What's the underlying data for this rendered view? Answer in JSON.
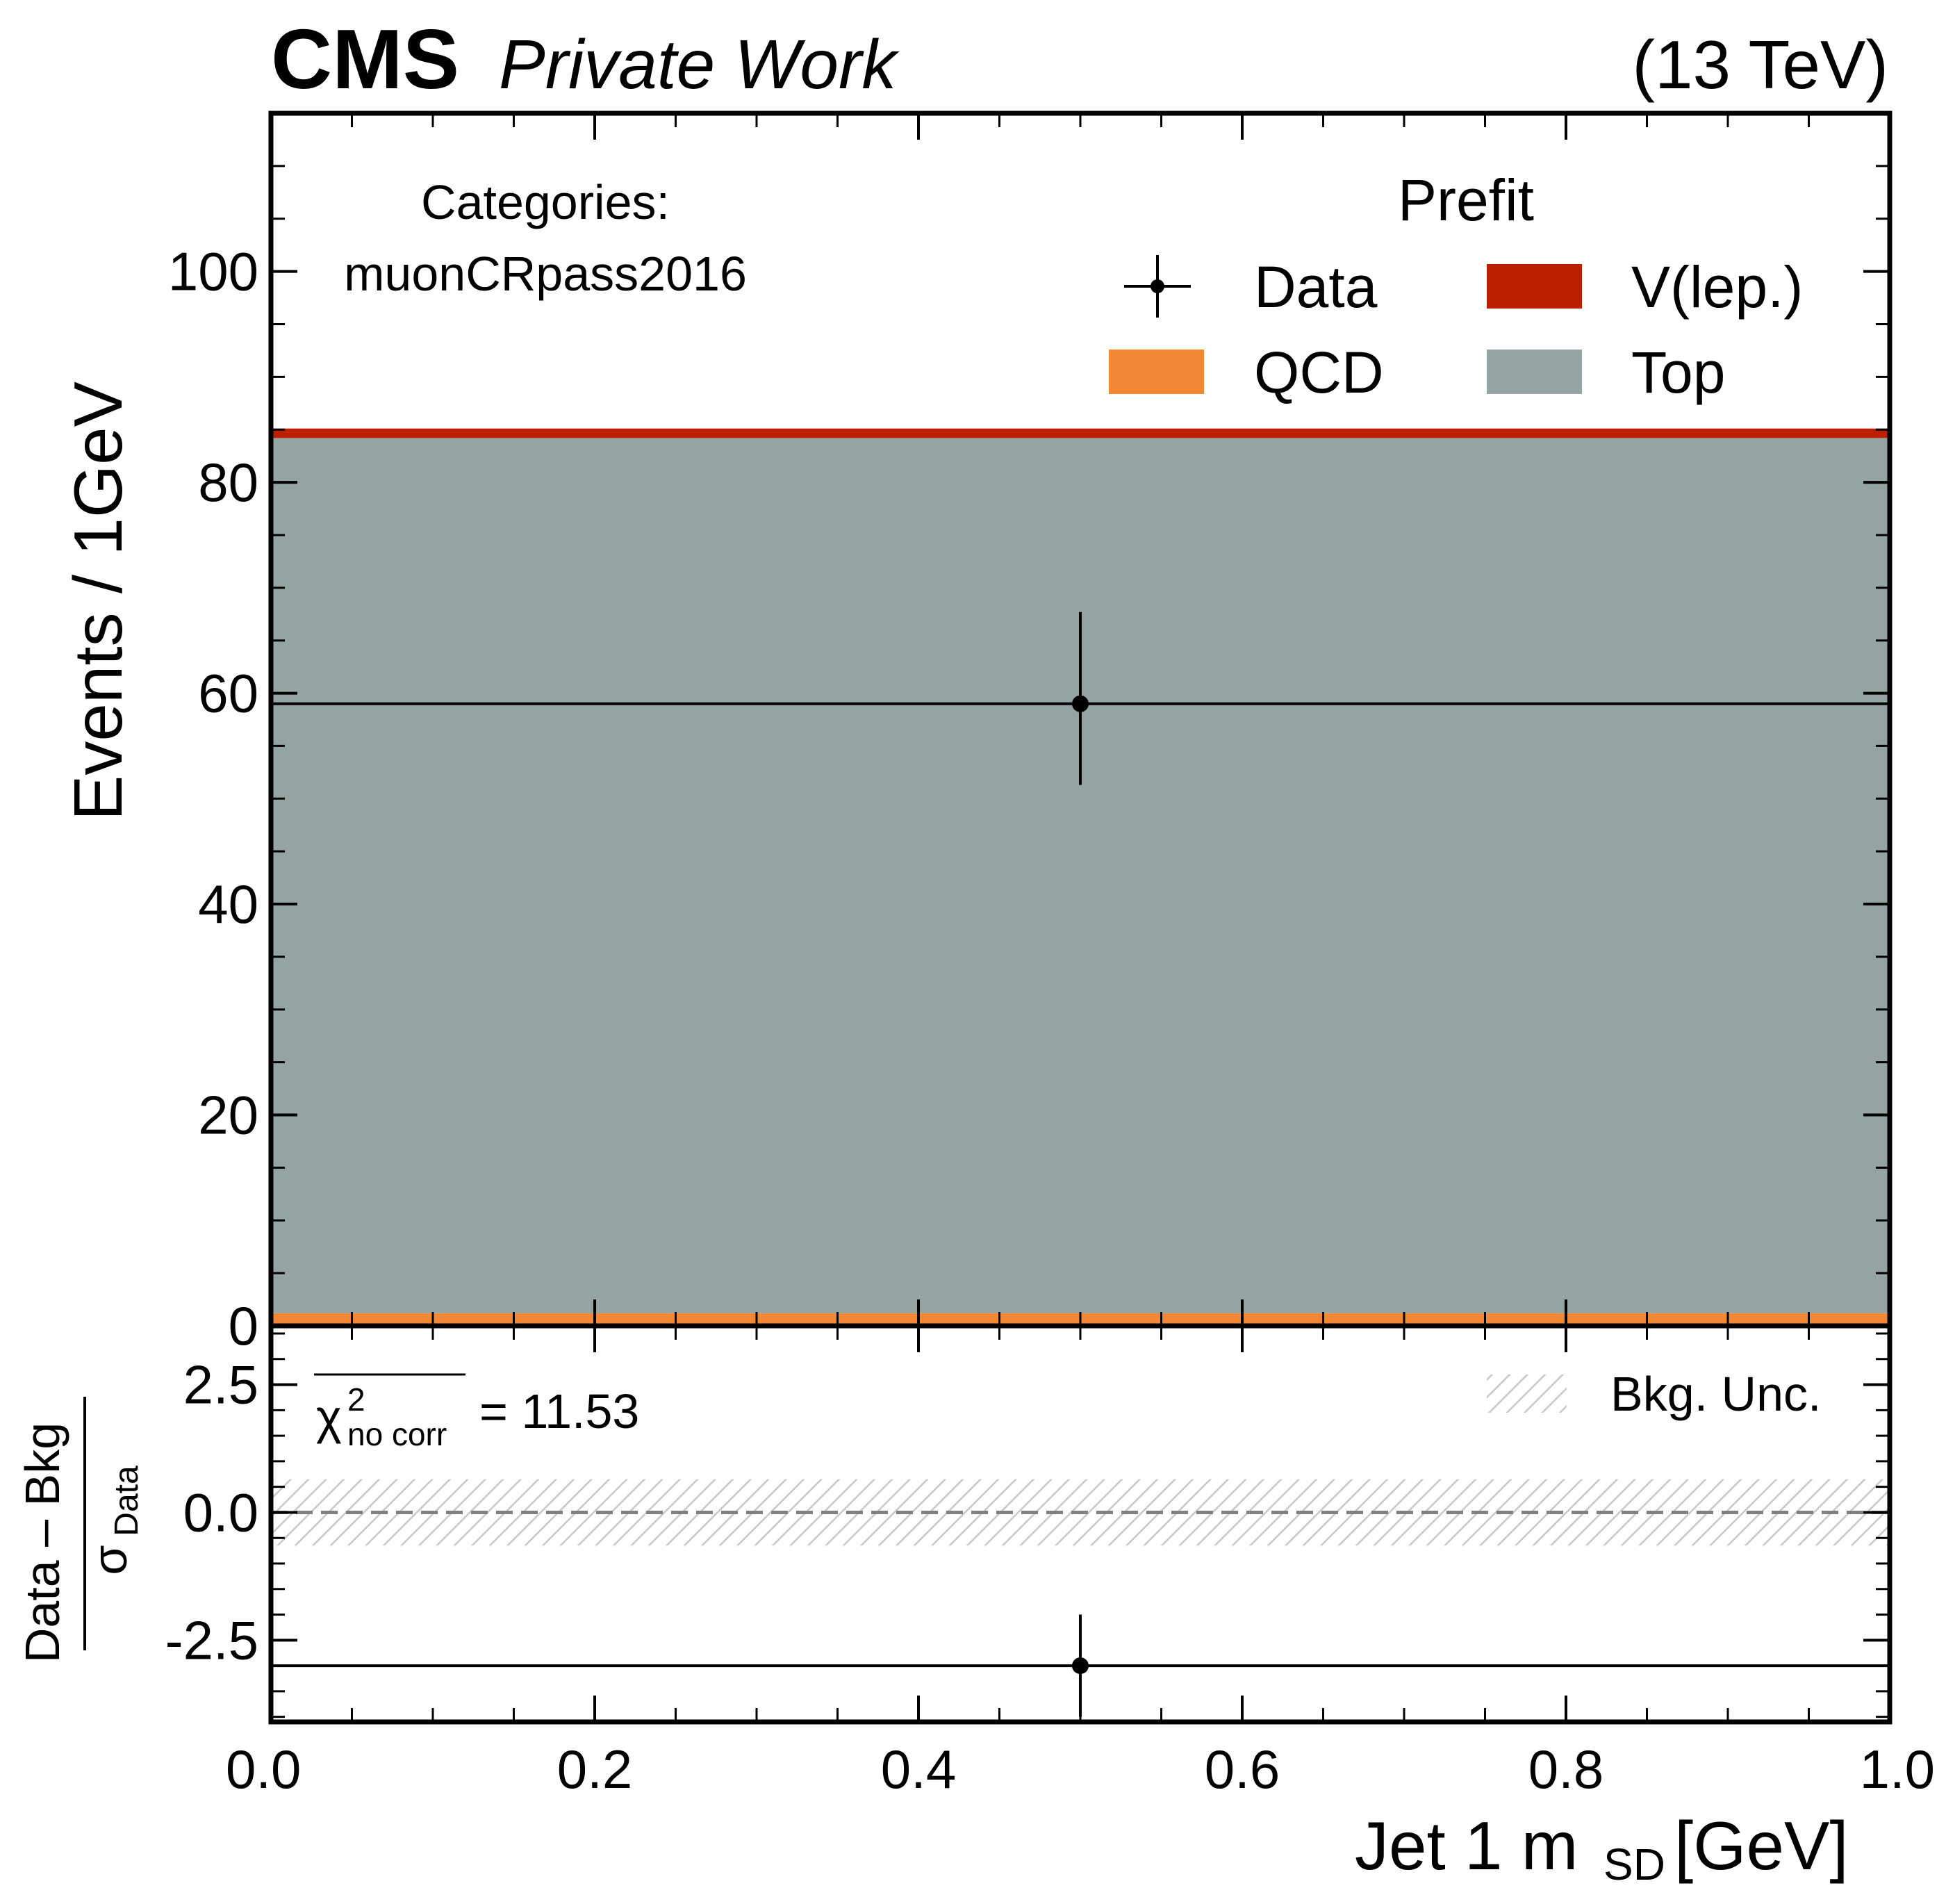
{
  "header": {
    "experiment": "CMS",
    "label": "Private Work",
    "energy": "(13 TeV)"
  },
  "annotations": {
    "categories_title": "Categories:",
    "categories_value": "muonCRpass2016",
    "chi2_symbol": "χ",
    "chi2_sup": "2",
    "chi2_sub": "no corr",
    "chi2_value": "= 11.53"
  },
  "legend": {
    "title": "Prefit",
    "entries": [
      {
        "label": "Data",
        "kind": "errorbar",
        "color": "#000000"
      },
      {
        "label": "V(lep.)",
        "kind": "patch",
        "color": "#bd1f01"
      },
      {
        "label": "QCD",
        "kind": "patch",
        "color": "#f28833"
      },
      {
        "label": "Top",
        "kind": "patch",
        "color": "#94a4a2"
      }
    ],
    "placement": "upper-right"
  },
  "ratio_legend": {
    "label": "Bkg. Unc.",
    "placement": "upper-right"
  },
  "chart_data": [
    {
      "type": "bar",
      "panel": "main",
      "stacked": true,
      "bins": [
        [
          0.0,
          1.0
        ]
      ],
      "series": [
        {
          "name": "QCD",
          "values": [
            1.2
          ],
          "color": "#f28833"
        },
        {
          "name": "Top",
          "values": [
            83.0
          ],
          "color": "#94a4a2"
        },
        {
          "name": "V(lep.)",
          "values": [
            0.9
          ],
          "color": "#bd1f01"
        }
      ],
      "data_points": {
        "name": "Data",
        "x": [
          0.5
        ],
        "y": [
          59.0
        ],
        "xerr": [
          0.5
        ],
        "yerr_low": [
          7.7
        ],
        "yerr_high": [
          8.7
        ]
      },
      "ylabel": "Events / 1GeV",
      "ylim": [
        0,
        115
      ],
      "yticks": [
        0,
        20,
        40,
        60,
        80,
        100
      ],
      "xlim": [
        0.0,
        1.0
      ]
    },
    {
      "type": "scatter",
      "panel": "ratio",
      "ylabel_num": "Data – Bkg",
      "ylabel_den": "σ",
      "ylabel_den_sub": "Data",
      "data_points": {
        "x": [
          0.5
        ],
        "y": [
          -3.0
        ],
        "xerr": [
          0.5
        ],
        "yerr": [
          1.0
        ]
      },
      "reference_line": 0.0,
      "uncertainty_band": [
        -0.65,
        0.65
      ],
      "ylim": [
        -4.1,
        3.65
      ],
      "yticks": [
        -2.5,
        0.0,
        2.5
      ],
      "ytick_labels": [
        "-2.5",
        "0.0",
        "2.5"
      ],
      "xlim": [
        0.0,
        1.0
      ],
      "xticks": [
        0.0,
        0.2,
        0.4,
        0.6,
        0.8,
        1.0
      ],
      "xtick_labels": [
        "0.0",
        "0.2",
        "0.4",
        "0.6",
        "0.8",
        "1.0"
      ],
      "xlabel_main": "Jet 1 m",
      "xlabel_sub": "SD",
      "xlabel_unit": " [GeV]"
    }
  ]
}
